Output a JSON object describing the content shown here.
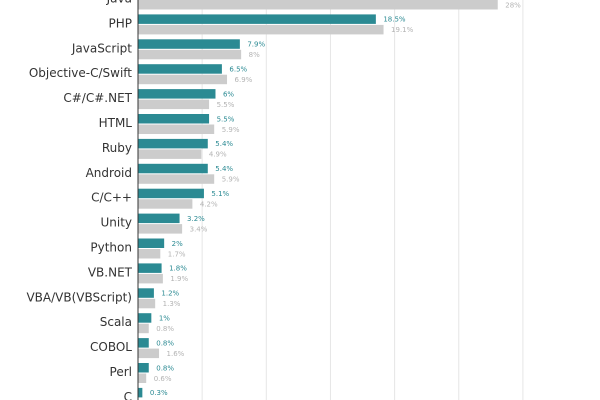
{
  "chart_data": {
    "type": "bar",
    "orientation": "horizontal",
    "categories": [
      "Java",
      "PHP",
      "JavaScript",
      "Objective-C/Swift",
      "C#/C#.NET",
      "HTML",
      "Ruby",
      "Android",
      "C/C++",
      "Unity",
      "Python",
      "VB.NET",
      "VBA/VB(VBScript)",
      "Scala",
      "COBOL",
      "Perl",
      "C"
    ],
    "series": [
      {
        "values": [
          null,
          18.5,
          7.9,
          6.5,
          6,
          5.5,
          5.4,
          5.4,
          5.1,
          3.2,
          2,
          1.8,
          1.2,
          1,
          0.8,
          0.8,
          0.3
        ],
        "labels": [
          "",
          "18.5%",
          "7.9%",
          "6.5%",
          "6%",
          "5.5%",
          "5.4%",
          "5.4%",
          "5.1%",
          "3.2%",
          "2%",
          "1.8%",
          "1.2%",
          "1%",
          "0.8%",
          "0.8%",
          "0.3%"
        ],
        "color": "#2b8a93"
      },
      {
        "values": [
          28,
          19.1,
          8,
          6.9,
          5.5,
          5.9,
          4.9,
          5.9,
          4.2,
          3.4,
          1.7,
          1.9,
          1.3,
          0.8,
          1.6,
          0.6,
          null
        ],
        "labels": [
          "28%",
          "19.1%",
          "8%",
          "6.9%",
          "5.5%",
          "5.9%",
          "4.9%",
          "5.9%",
          "4.2%",
          "3.4%",
          "1.7%",
          "1.9%",
          "1.3%",
          "0.8%",
          "1.6%",
          "0.6%",
          ""
        ],
        "color": "#cccccc"
      }
    ],
    "xlim": [
      0,
      30
    ],
    "grid": true
  }
}
